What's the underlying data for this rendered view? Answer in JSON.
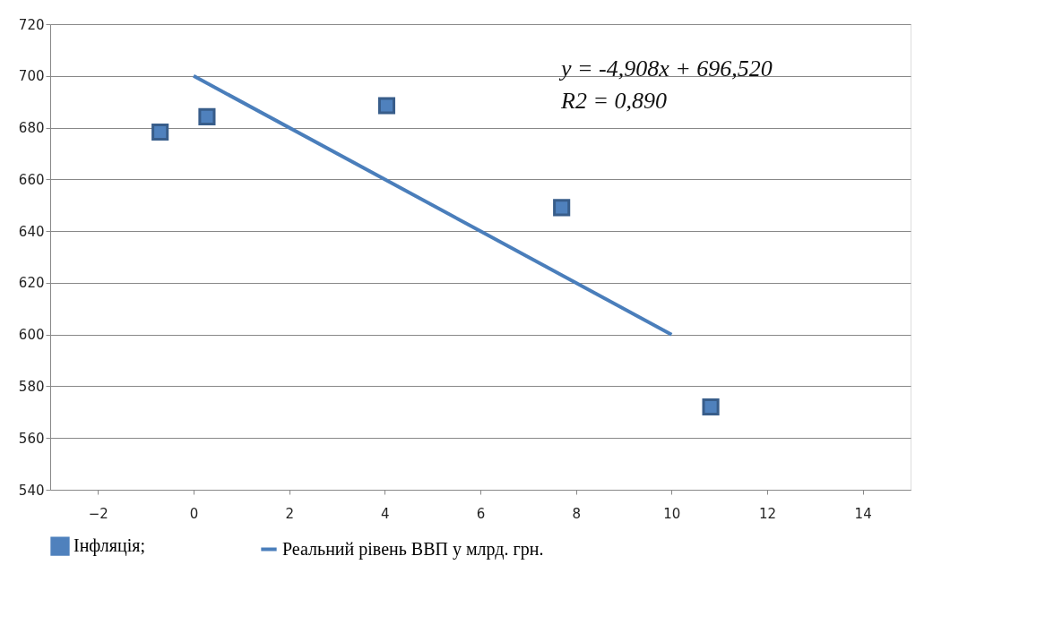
{
  "chart_data": {
    "type": "scatter",
    "series": [
      {
        "name": "Інфляція;",
        "color": "#4f81bd",
        "marker": "square",
        "x": [
          -0.7,
          0.28,
          4.04,
          7.7,
          10.82
        ],
        "values": [
          678.3,
          684.2,
          688.5,
          649.1,
          572
        ]
      },
      {
        "name": "Реальний рівень ВВП у млрд. грн.",
        "type": "line",
        "color": "#4a7ebb",
        "x": [
          0,
          10
        ],
        "values": [
          700,
          600
        ]
      }
    ],
    "xlim": [
      -3,
      15
    ],
    "xticks": [
      -2,
      0,
      2,
      4,
      6,
      8,
      10,
      12,
      14
    ],
    "ylim": [
      540,
      720
    ],
    "yticks": [
      540,
      560,
      580,
      600,
      620,
      640,
      660,
      680,
      700,
      720
    ],
    "grid": "y",
    "legend": "bottom",
    "annotations": [
      "y = -4,908x + 696,520",
      "R2 = 0,890"
    ]
  }
}
